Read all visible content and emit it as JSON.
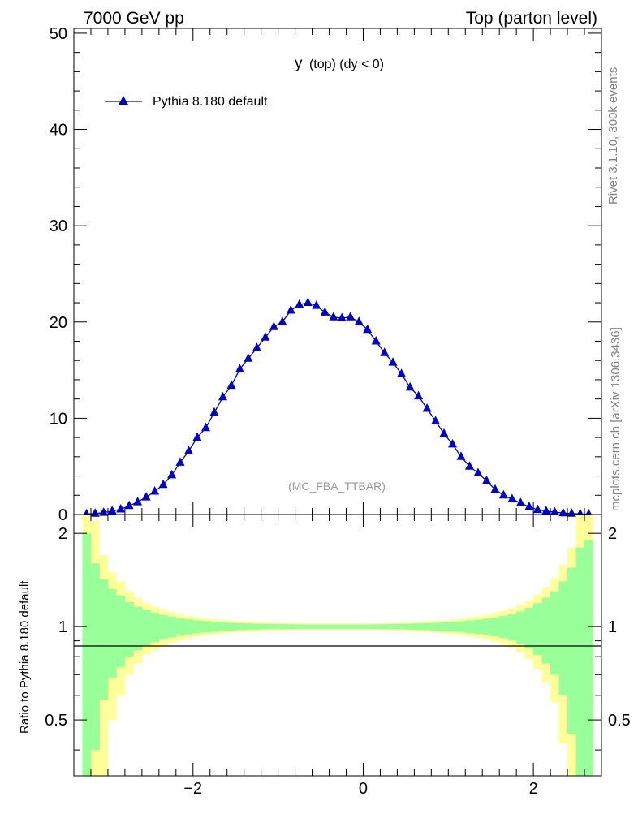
{
  "header": {
    "left_title": "7000 GeV pp",
    "right_title": "Top (parton level)"
  },
  "side_labels": {
    "rivet": "Rivet 3.1.10,  300k events",
    "mcplots": "mcplots.cern.ch [arXiv:1306.3436]"
  },
  "colors": {
    "series": "#0000cc",
    "band_inner": "#99ff99",
    "band_outer": "#ffff99",
    "axis": "#000000",
    "watermark": "#999999"
  },
  "chart_data": [
    {
      "type": "line",
      "panel": "main",
      "title": "y",
      "title_suffix": "(top) (dy < 0)",
      "watermark": "(MC_FBA_TTBAR)",
      "xlabel": "",
      "ylabel": "",
      "xlim": [
        -3.4,
        2.8
      ],
      "ylim": [
        0,
        50.5
      ],
      "yticks": [
        0,
        10,
        20,
        30,
        40,
        50
      ],
      "ytick_labels": [
        "0",
        "10",
        "20",
        "30",
        "40",
        "50"
      ],
      "legend": {
        "position": "top-left",
        "marker": "triangle"
      },
      "series": [
        {
          "name": "Pythia 8.180 default",
          "x": [
            -3.25,
            -3.15,
            -3.05,
            -2.95,
            -2.85,
            -2.75,
            -2.65,
            -2.55,
            -2.45,
            -2.35,
            -2.25,
            -2.15,
            -2.05,
            -1.95,
            -1.85,
            -1.75,
            -1.65,
            -1.55,
            -1.45,
            -1.35,
            -1.25,
            -1.15,
            -1.05,
            -0.95,
            -0.85,
            -0.75,
            -0.65,
            -0.55,
            -0.45,
            -0.35,
            -0.25,
            -0.15,
            -0.05,
            0.05,
            0.15,
            0.25,
            0.35,
            0.45,
            0.55,
            0.65,
            0.75,
            0.85,
            0.95,
            1.05,
            1.15,
            1.25,
            1.35,
            1.45,
            1.55,
            1.65,
            1.75,
            1.85,
            1.95,
            2.05,
            2.15,
            2.25,
            2.35,
            2.45,
            2.55,
            2.65
          ],
          "values": [
            0.05,
            0.1,
            0.2,
            0.35,
            0.55,
            0.9,
            1.3,
            1.8,
            2.4,
            3.1,
            4.1,
            5.4,
            6.6,
            8.0,
            9.0,
            10.6,
            12.2,
            13.4,
            15.1,
            16.2,
            17.3,
            18.4,
            19.5,
            20.0,
            21.2,
            21.8,
            22.0,
            21.7,
            21.0,
            20.5,
            20.4,
            20.5,
            20.0,
            19.2,
            18.0,
            16.8,
            15.8,
            14.6,
            13.2,
            12.3,
            11.0,
            9.7,
            8.4,
            7.3,
            6.0,
            5.0,
            4.3,
            3.5,
            2.6,
            2.0,
            1.6,
            1.2,
            0.8,
            0.5,
            0.35,
            0.25,
            0.15,
            0.1,
            0.06,
            0.04
          ]
        }
      ]
    },
    {
      "type": "area",
      "panel": "ratio",
      "ylabel": "Ratio to Pythia 8.180 default",
      "xlim": [
        -3.4,
        2.8
      ],
      "ylim": [
        0.33,
        2.3
      ],
      "yscale": "log",
      "yticks": [
        0.5,
        1,
        2
      ],
      "ytick_labels": [
        "0.5",
        "1",
        "2"
      ],
      "xticks": [
        -2,
        0,
        2
      ],
      "xtick_labels": [
        "−2",
        "0",
        "2"
      ],
      "reference_line": 1,
      "bin_edges": [
        -3.3,
        -3.2,
        -3.1,
        -3.0,
        -2.9,
        -2.8,
        -2.7,
        -2.6,
        -2.5,
        -2.4,
        -2.3,
        -2.2,
        -2.1,
        -2.0,
        -1.9,
        -1.8,
        -1.7,
        -1.6,
        -1.5,
        -1.4,
        -1.3,
        -1.2,
        -1.1,
        -1.0,
        -0.9,
        -0.8,
        -0.7,
        -0.6,
        -0.5,
        -0.4,
        -0.3,
        -0.2,
        -0.1,
        0.0,
        0.1,
        0.2,
        0.3,
        0.4,
        0.5,
        0.6,
        0.7,
        0.8,
        0.9,
        1.0,
        1.1,
        1.2,
        1.3,
        1.4,
        1.5,
        1.6,
        1.7,
        1.8,
        1.9,
        2.0,
        2.1,
        2.2,
        2.3,
        2.4,
        2.5,
        2.6,
        2.7
      ],
      "inner_band_rel": [
        1.0,
        0.6,
        0.42,
        0.32,
        0.26,
        0.2,
        0.16,
        0.13,
        0.11,
        0.09,
        0.078,
        0.066,
        0.056,
        0.048,
        0.042,
        0.037,
        0.033,
        0.029,
        0.026,
        0.024,
        0.022,
        0.02,
        0.019,
        0.018,
        0.017,
        0.016,
        0.016,
        0.016,
        0.016,
        0.016,
        0.016,
        0.016,
        0.016,
        0.016,
        0.017,
        0.018,
        0.019,
        0.02,
        0.022,
        0.024,
        0.026,
        0.029,
        0.032,
        0.036,
        0.04,
        0.046,
        0.052,
        0.06,
        0.07,
        0.082,
        0.098,
        0.12,
        0.15,
        0.19,
        0.24,
        0.3,
        0.4,
        0.55,
        0.8,
        0.9
      ],
      "outer_band_rel": [
        2.0,
        1.2,
        0.7,
        0.5,
        0.4,
        0.3,
        0.24,
        0.19,
        0.16,
        0.135,
        0.115,
        0.098,
        0.084,
        0.072,
        0.063,
        0.056,
        0.05,
        0.045,
        0.04,
        0.037,
        0.034,
        0.032,
        0.03,
        0.028,
        0.027,
        0.026,
        0.025,
        0.025,
        0.025,
        0.025,
        0.025,
        0.025,
        0.025,
        0.025,
        0.026,
        0.027,
        0.029,
        0.031,
        0.033,
        0.036,
        0.039,
        0.043,
        0.048,
        0.054,
        0.061,
        0.07,
        0.08,
        0.092,
        0.106,
        0.124,
        0.146,
        0.176,
        0.215,
        0.27,
        0.34,
        0.43,
        0.58,
        0.8,
        1.3,
        1.5
      ]
    }
  ]
}
